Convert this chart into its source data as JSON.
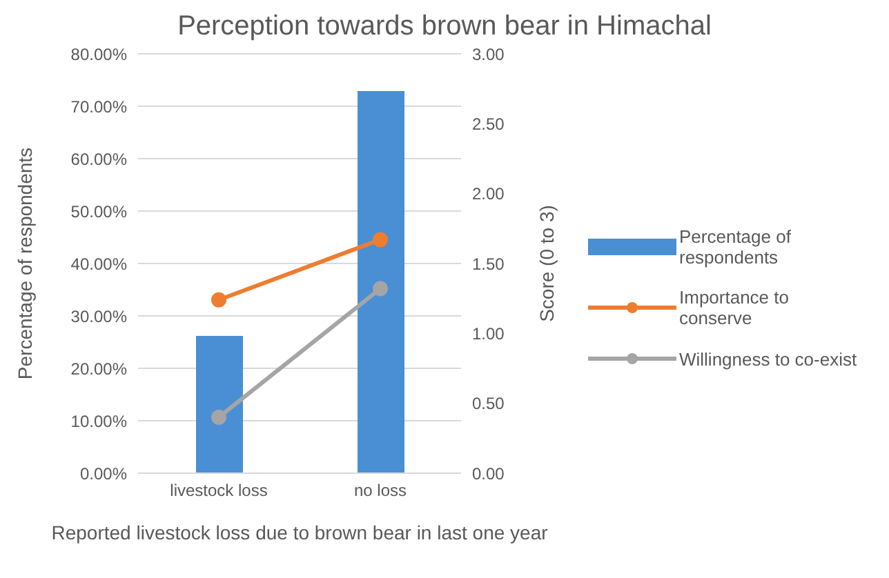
{
  "chart_data": {
    "type": "bar",
    "title": "Perception towards brown bear in Himachal",
    "xlabel": "Reported livestock loss due to brown bear in last one year",
    "ylabel": "Percentage of respondents",
    "y2label": "Score (0 to 3)",
    "categories": [
      "livestock loss",
      "no loss"
    ],
    "series": [
      {
        "name": "Percentage of respondents",
        "color": "#4a8fd4",
        "values": [
          26.2,
          72.9
        ]
      },
      {
        "name": "Importance to conserve",
        "type": "line",
        "axis": "y2",
        "color": "#ed7d31",
        "values": [
          1.24,
          1.67
        ]
      },
      {
        "name": "Willingness to co-exist",
        "type": "line",
        "axis": "y2",
        "color": "#a5a5a5",
        "values": [
          0.4,
          1.32
        ]
      }
    ],
    "ylim": [
      0,
      80
    ],
    "yticks": [
      {
        "value": 0,
        "label": "0.00%"
      },
      {
        "value": 10,
        "label": "10.00%"
      },
      {
        "value": 20,
        "label": "20.00%"
      },
      {
        "value": 30,
        "label": "30.00%"
      },
      {
        "value": 40,
        "label": "40.00%"
      },
      {
        "value": 50,
        "label": "50.00%"
      },
      {
        "value": 60,
        "label": "60.00%"
      },
      {
        "value": 70,
        "label": "70.00%"
      },
      {
        "value": 80,
        "label": "80.00%"
      }
    ],
    "y2lim": [
      0,
      3
    ],
    "y2ticks": [
      {
        "value": 0,
        "label": "0.00"
      },
      {
        "value": 0.5,
        "label": "0.50"
      },
      {
        "value": 1,
        "label": "1.00"
      },
      {
        "value": 1.5,
        "label": "1.50"
      },
      {
        "value": 2,
        "label": "2.00"
      },
      {
        "value": 2.5,
        "label": "2.50"
      },
      {
        "value": 3,
        "label": "3.00"
      }
    ],
    "grid": "y",
    "legend": "right",
    "marker": "circle"
  }
}
